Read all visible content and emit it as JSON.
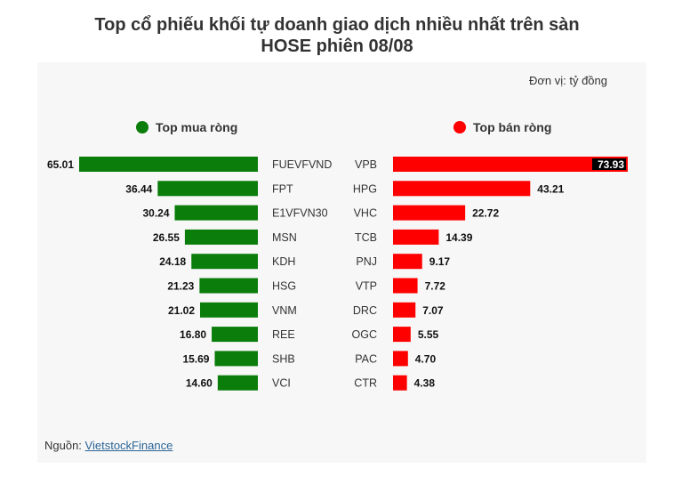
{
  "title_line1": "Top cổ phiếu khối tự doanh giao dịch nhiều nhất trên sàn",
  "title_line2": "HOSE phiên 08/08",
  "unit": "Đơn vị: tỷ đồng",
  "source_label": "Nguồn: ",
  "source_link": "VietstockFinance",
  "colors": {
    "buy": "#0a7d0a",
    "sell": "#ff0000",
    "background": "#f7f7f7"
  },
  "chart_data": [
    {
      "type": "bar",
      "orientation": "horizontal",
      "legend": "Top mua ròng",
      "color": "#0a7d0a",
      "categories": [
        "FUEVFVND",
        "FPT",
        "E1VFVN30",
        "MSN",
        "KDH",
        "HSG",
        "VNM",
        "REE",
        "SHB",
        "VCI"
      ],
      "values": [
        65.01,
        36.44,
        30.24,
        26.55,
        24.18,
        21.23,
        21.02,
        16.8,
        15.69,
        14.6
      ],
      "value_labels": [
        "65.01",
        "36.44",
        "30.24",
        "26.55",
        "24.18",
        "21.23",
        "21.02",
        "16.80",
        "15.69",
        "14.60"
      ]
    },
    {
      "type": "bar",
      "orientation": "horizontal",
      "legend": "Top bán ròng",
      "color": "#ff0000",
      "categories": [
        "VPB",
        "HPG",
        "VHC",
        "TCB",
        "PNJ",
        "VTP",
        "DRC",
        "OGC",
        "PAC",
        "CTR"
      ],
      "values": [
        73.93,
        43.21,
        22.72,
        14.39,
        9.17,
        7.72,
        7.07,
        5.55,
        4.7,
        4.38
      ],
      "value_labels": [
        "73.93",
        "43.21",
        "22.72",
        "14.39",
        "9.17",
        "7.72",
        "7.07",
        "5.55",
        "4.70",
        "4.38"
      ]
    }
  ]
}
